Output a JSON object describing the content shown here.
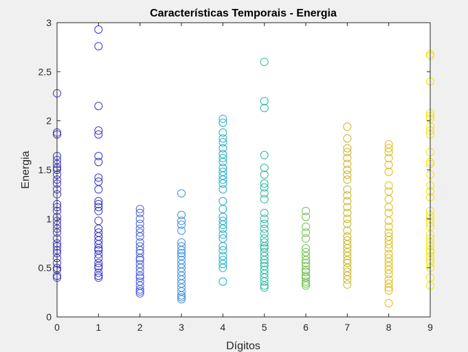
{
  "chart_data": {
    "type": "scatter",
    "title": "Características Temporais - Energia",
    "xlabel": "Dígitos",
    "ylabel": "Energia",
    "xlim": [
      0,
      9
    ],
    "ylim": [
      0,
      3
    ],
    "xticks": [
      "0",
      "1",
      "2",
      "3",
      "4",
      "5",
      "6",
      "7",
      "8",
      "9"
    ],
    "yticks": [
      "0",
      "0.5",
      "1",
      "1.5",
      "2",
      "2.5",
      "3"
    ],
    "grid": false,
    "marker": "open-circle",
    "series": [
      {
        "x": 0,
        "color": "#3b3bc8",
        "values": [
          2.28,
          1.88,
          1.86,
          1.64,
          1.6,
          1.56,
          1.52,
          1.5,
          1.45,
          1.4,
          1.36,
          1.3,
          1.25,
          1.15,
          1.12,
          1.08,
          1.02,
          0.98,
          0.94,
          0.9,
          0.86,
          0.8,
          0.75,
          0.72,
          0.68,
          0.65,
          0.6,
          0.55,
          0.5,
          0.48,
          0.42,
          0.4
        ]
      },
      {
        "x": 1,
        "color": "#3636c8",
        "values": [
          2.93,
          2.76,
          2.15,
          1.9,
          1.86,
          1.64,
          1.58,
          1.42,
          1.38,
          1.3,
          1.18,
          1.15,
          1.12,
          1.08,
          0.98,
          0.9,
          0.86,
          0.82,
          0.78,
          0.74,
          0.7,
          0.68,
          0.64,
          0.6,
          0.55,
          0.52,
          0.5,
          0.45,
          0.42,
          0.4
        ]
      },
      {
        "x": 2,
        "color": "#4a60dc",
        "values": [
          1.1,
          1.06,
          1.0,
          0.95,
          0.9,
          0.86,
          0.82,
          0.76,
          0.72,
          0.68,
          0.65,
          0.6,
          0.58,
          0.54,
          0.5,
          0.46,
          0.42,
          0.4,
          0.36,
          0.32,
          0.28,
          0.26,
          0.24
        ]
      },
      {
        "x": 3,
        "color": "#3f8fe0",
        "values": [
          1.26,
          1.04,
          0.98,
          0.94,
          0.88,
          0.76,
          0.72,
          0.68,
          0.65,
          0.62,
          0.58,
          0.54,
          0.5,
          0.46,
          0.42,
          0.38,
          0.34,
          0.3,
          0.26,
          0.22,
          0.2,
          0.18
        ]
      },
      {
        "x": 4,
        "color": "#1eaecb",
        "values": [
          2.02,
          1.98,
          1.88,
          1.82,
          1.78,
          1.72,
          1.66,
          1.62,
          1.58,
          1.52,
          1.48,
          1.44,
          1.4,
          1.36,
          1.3,
          1.18,
          1.1,
          1.02,
          0.98,
          0.94,
          0.9,
          0.84,
          0.8,
          0.72,
          0.68,
          0.62,
          0.58,
          0.54,
          0.5,
          0.36
        ]
      },
      {
        "x": 5,
        "color": "#28b8a0",
        "values": [
          2.6,
          2.2,
          2.13,
          1.65,
          1.52,
          1.45,
          1.36,
          1.32,
          1.26,
          1.2,
          1.06,
          1.0,
          0.95,
          0.9,
          0.85,
          0.8,
          0.76,
          0.72,
          0.7,
          0.66,
          0.62,
          0.58,
          0.55,
          0.52,
          0.48,
          0.44,
          0.4,
          0.36,
          0.32,
          0.3
        ]
      },
      {
        "x": 6,
        "color": "#72c050",
        "values": [
          1.08,
          1.02,
          0.92,
          0.86,
          0.8,
          0.7,
          0.66,
          0.62,
          0.58,
          0.55,
          0.52,
          0.48,
          0.46,
          0.42,
          0.4,
          0.36,
          0.34,
          0.32
        ]
      },
      {
        "x": 7,
        "color": "#c8b428",
        "values": [
          1.94,
          1.82,
          1.72,
          1.68,
          1.62,
          1.56,
          1.5,
          1.45,
          1.4,
          1.3,
          1.24,
          1.18,
          1.12,
          1.06,
          1.0,
          0.95,
          0.88,
          0.82,
          0.78,
          0.74,
          0.7,
          0.66,
          0.62,
          0.58,
          0.55,
          0.5,
          0.46,
          0.42,
          0.38,
          0.33
        ]
      },
      {
        "x": 8,
        "color": "#e0bc18",
        "values": [
          1.76,
          1.72,
          1.68,
          1.62,
          1.55,
          1.48,
          1.34,
          1.28,
          1.2,
          1.12,
          1.06,
          0.98,
          0.92,
          0.86,
          0.82,
          0.78,
          0.74,
          0.7,
          0.64,
          0.6,
          0.56,
          0.52,
          0.48,
          0.44,
          0.38,
          0.34,
          0.3,
          0.27,
          0.14
        ]
      },
      {
        "x": 9,
        "color": "#f2e600",
        "values": [
          2.68,
          2.66,
          2.4,
          2.08,
          2.05,
          2.02,
          1.94,
          1.9,
          1.86,
          1.68,
          1.58,
          1.56,
          1.45,
          1.34,
          1.28,
          1.22,
          1.08,
          1.04,
          1.0,
          0.96,
          0.92,
          0.84,
          0.8,
          0.76,
          0.72,
          0.68,
          0.66,
          0.62,
          0.58,
          0.55,
          0.5,
          0.4,
          0.32
        ]
      }
    ]
  }
}
